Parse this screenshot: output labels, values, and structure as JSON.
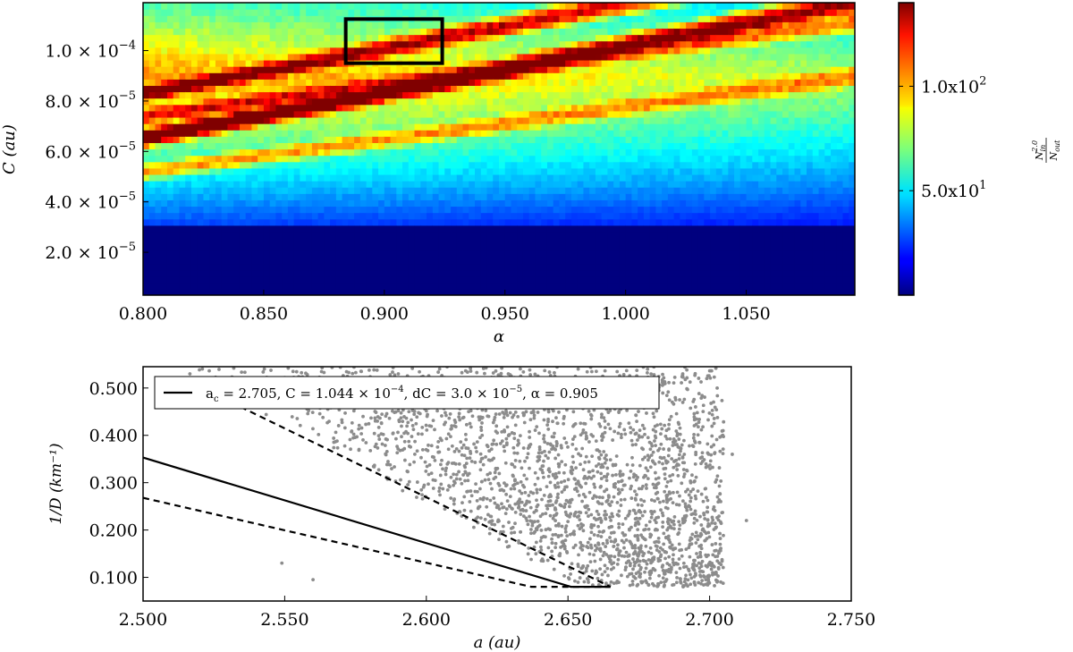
{
  "chart_data": [
    {
      "type": "heatmap",
      "title": "",
      "xlabel": "α",
      "ylabel": "C (au)",
      "xlim": [
        0.8,
        1.095
      ],
      "ylim": [
        3e-06,
        0.000119
      ],
      "x_ticks": [
        0.8,
        0.85,
        0.9,
        0.95,
        1.0,
        1.05
      ],
      "x_tick_labels": [
        "0.800",
        "0.850",
        "0.900",
        "0.950",
        "1.000",
        "1.050"
      ],
      "y_ticks": [
        2e-05,
        4e-05,
        6e-05,
        8e-05,
        0.0001
      ],
      "y_tick_labels": [
        {
          "mantissa": "2.0",
          "exp": "−5"
        },
        {
          "mantissa": "4.0",
          "exp": "−5"
        },
        {
          "mantissa": "6.0",
          "exp": "−5"
        },
        {
          "mantissa": "8.0",
          "exp": "−5"
        },
        {
          "mantissa": "1.0",
          "exp": "−4"
        }
      ],
      "colormap": "jet",
      "colorbar": {
        "label_num": "N",
        "label_num_sub": "in",
        "label_num_sup": "2.0",
        "label_den": "N",
        "label_den_sub": "out",
        "range": [
          0,
          140
        ],
        "ticks": [
          {
            "value": 50,
            "base": "5.0x10",
            "exp": "1"
          },
          {
            "value": 100,
            "base": "1.0x10",
            "exp": "2"
          }
        ]
      },
      "value_floor_below_C": 3e-05,
      "ridges": [
        {
          "alpha": [
            0.8,
            1.095
          ],
          "C": [
            6.55e-05,
            0.000119
          ],
          "peak": 135
        },
        {
          "alpha": [
            0.8,
            1.095
          ],
          "C": [
            8.3e-05,
            0.000136
          ],
          "peak": 112
        },
        {
          "alpha": [
            0.8,
            1.095
          ],
          "C": [
            7.4e-05,
            0.000112
          ],
          "peak": 95
        },
        {
          "alpha": [
            0.8,
            1.095
          ],
          "C": [
            5.2e-05,
            9e-05
          ],
          "peak": 80
        }
      ],
      "highlight_box": {
        "alpha": [
          0.884,
          0.924
        ],
        "C": [
          9.5e-05,
          0.0001125
        ],
        "color": "#000000"
      }
    },
    {
      "type": "scatter",
      "title": "",
      "xlabel": "a (au)",
      "ylabel": "1/D (km⁻¹)",
      "xlim": [
        2.5,
        2.75
      ],
      "ylim": [
        0.05,
        0.545
      ],
      "x_ticks": [
        2.5,
        2.55,
        2.6,
        2.65,
        2.7,
        2.75
      ],
      "x_tick_labels": [
        "2.500",
        "2.550",
        "2.600",
        "2.650",
        "2.700",
        "2.750"
      ],
      "y_ticks": [
        0.1,
        0.2,
        0.3,
        0.4,
        0.5
      ],
      "y_tick_labels": [
        "0.100",
        "0.200",
        "0.300",
        "0.400",
        "0.500"
      ],
      "point_color": "#8c8c8c",
      "point_count": 2400,
      "point_region": {
        "a_left_edge_at_min": 2.655,
        "slope_per_au_inverse": 3.2,
        "a_max": 2.705,
        "inv_d_min": 0.08,
        "inv_d_max": 0.545
      },
      "legend": {
        "placement": "top-center",
        "text_ac": "a",
        "text_ac_sub": "c",
        "text_ac_val": " = 2.705,  C = 1.044 × 10",
        "text_c_exp": "−4",
        "text_dc": ",  dC = 3.0 × 10",
        "text_dc_exp": "−5",
        "text_alpha": ",  α  =  0.905"
      },
      "lines": [
        {
          "style": "solid",
          "x": [
            2.5,
            2.651,
            2.665
          ],
          "y": [
            0.353,
            0.08,
            0.08
          ]
        },
        {
          "style": "dashed",
          "x": [
            2.5,
            2.637,
            2.665
          ],
          "y": [
            0.268,
            0.08,
            0.08
          ]
        },
        {
          "style": "dashed",
          "x": [
            2.531,
            2.665
          ],
          "y": [
            0.47,
            0.08
          ]
        }
      ]
    }
  ]
}
